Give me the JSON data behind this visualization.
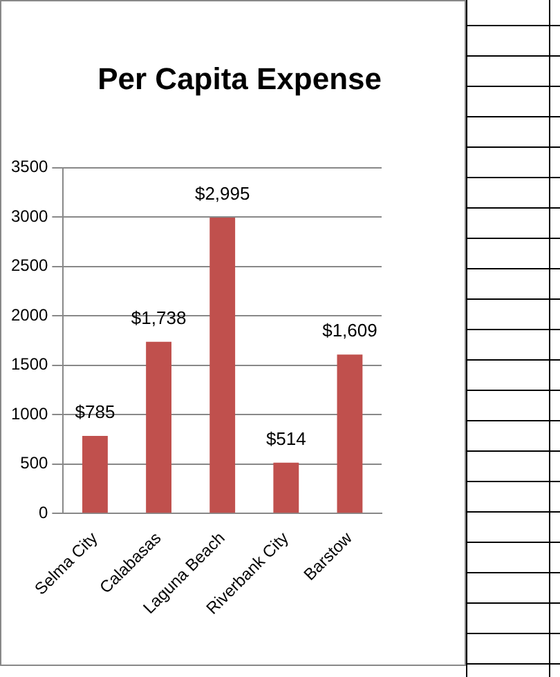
{
  "chart_data": {
    "type": "bar",
    "title": "Per Capita Expense",
    "categories": [
      "Selma City",
      "Calabasas",
      "Laguna Beach",
      "Riverbank City",
      "Barstow"
    ],
    "values": [
      785,
      1738,
      2995,
      514,
      1609
    ],
    "color": "#c0504d",
    "value_labels": [
      "$785",
      "$1,738",
      "$2,995",
      "$514",
      "$1,609"
    ],
    "ylim": [
      0,
      3500
    ],
    "yticks": [
      0,
      500,
      1000,
      1500,
      2000,
      2500,
      3000,
      3500
    ],
    "grid": "y"
  }
}
